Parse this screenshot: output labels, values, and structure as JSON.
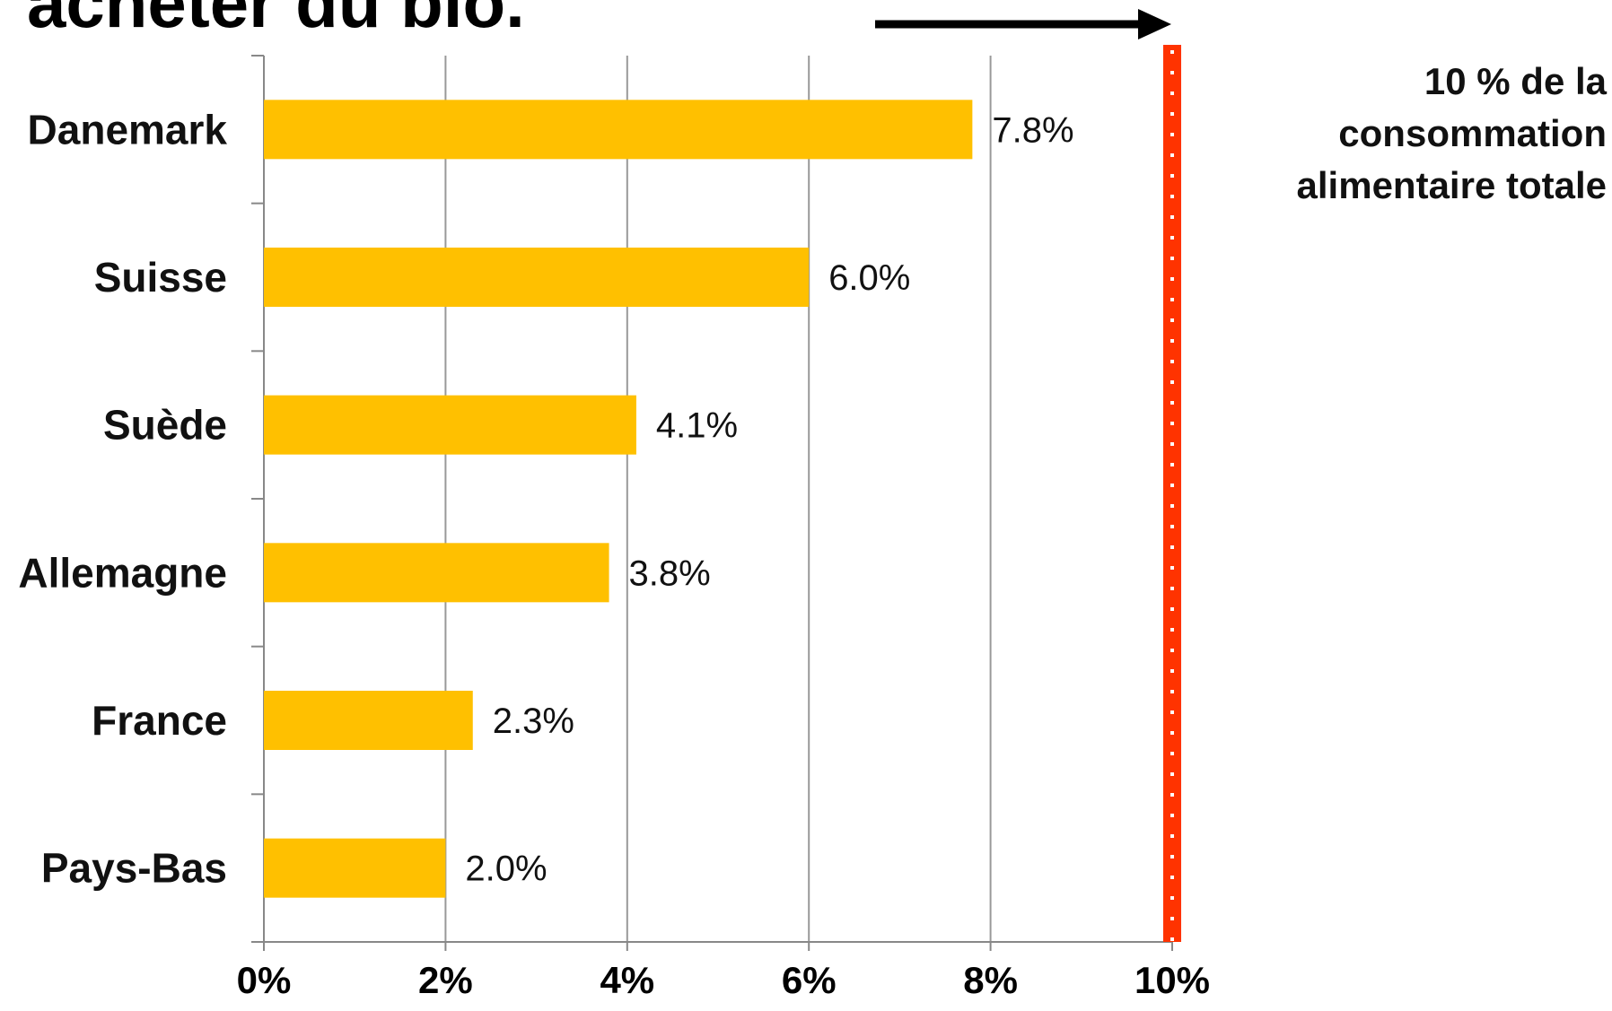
{
  "title": "acheter du bio.",
  "target_label_lines": [
    "10 % de la",
    "consommation",
    "alimentaire totale"
  ],
  "colors": {
    "bar": "#FFC000",
    "target_line": "#FF3300",
    "grid": "#999999",
    "axis": "#888888",
    "arrow": "#000000"
  },
  "chart_data": {
    "type": "bar",
    "orientation": "horizontal",
    "categories": [
      "Danemark",
      "Suisse",
      "Suède",
      "Allemagne",
      "France",
      "Pays-Bas"
    ],
    "values": [
      7.8,
      6.0,
      4.1,
      3.8,
      2.3,
      2.0
    ],
    "value_labels": [
      "7.8%",
      "6.0%",
      "4.1%",
      "3.8%",
      "2.3%",
      "2.0%"
    ],
    "x_ticks": [
      "0%",
      "2%",
      "4%",
      "6%",
      "8%",
      "10%"
    ],
    "xlim": [
      0,
      10
    ],
    "target_value": 10,
    "xlabel": "",
    "ylabel": "",
    "grid": "vertical"
  }
}
